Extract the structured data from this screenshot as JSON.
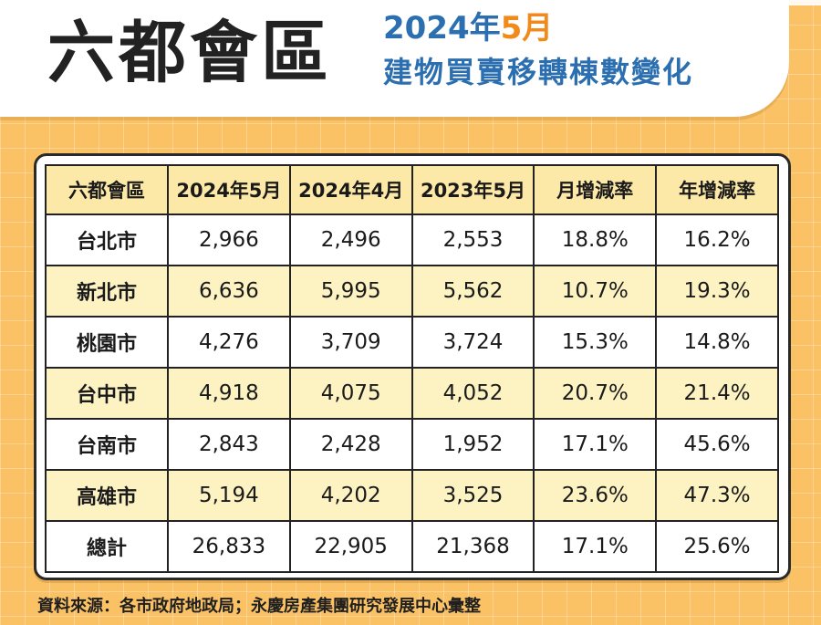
{
  "header": {
    "title": "六都會區",
    "subtitle_year": "2024年",
    "subtitle_month": "5月",
    "subtitle_line2": "建物買賣移轉棟數變化"
  },
  "table": {
    "columns": [
      "六都會區",
      "2024年5月",
      "2024年4月",
      "2023年5月",
      "月增減率",
      "年增減率"
    ],
    "rows": [
      [
        "台北市",
        "2,966",
        "2,496",
        "2,553",
        "18.8%",
        "16.2%"
      ],
      [
        "新北市",
        "6,636",
        "5,995",
        "5,562",
        "10.7%",
        "19.3%"
      ],
      [
        "桃園市",
        "4,276",
        "3,709",
        "3,724",
        "15.3%",
        "14.8%"
      ],
      [
        "台中市",
        "4,918",
        "4,075",
        "4,052",
        "20.7%",
        "21.4%"
      ],
      [
        "台南市",
        "2,843",
        "2,428",
        "1,952",
        "17.1%",
        "45.6%"
      ],
      [
        "高雄市",
        "5,194",
        "4,202",
        "3,525",
        "23.6%",
        "47.3%"
      ],
      [
        "總計",
        "26,833",
        "22,905",
        "21,368",
        "17.1%",
        "25.6%"
      ]
    ]
  },
  "footer": {
    "source": "資料來源：各市政府地政局；永慶房產集團研究發展中心彙整"
  },
  "colors": {
    "background": "#fbc265",
    "subtitle_blue": "#2c6fb1",
    "month_orange": "#f28a1b",
    "header_row": "#fde9a7",
    "alt_row": "#fdf2c2"
  }
}
